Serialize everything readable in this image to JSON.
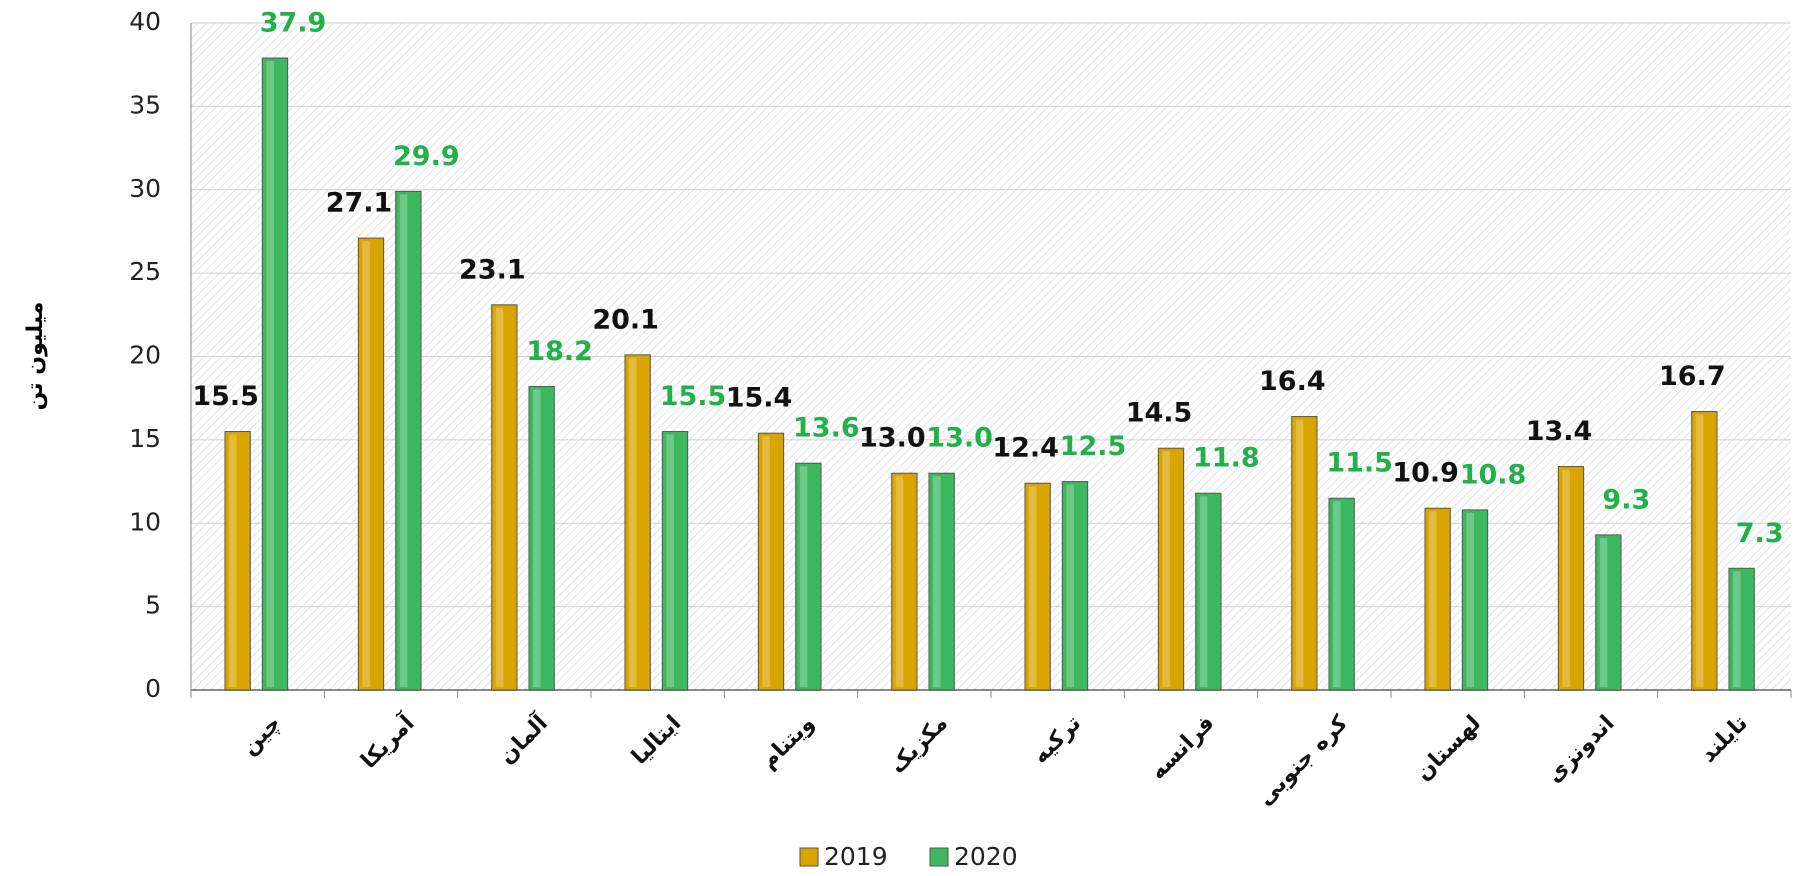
{
  "chart_data": {
    "type": "bar",
    "y_label": "میلیون تن",
    "categories": [
      "چین",
      "آمریکا",
      "آلمان",
      "ایتالیا",
      "ویتنام",
      "مکزیک",
      "ترکیه",
      "فرانسه",
      "کره جنوبی",
      "لهستان",
      "اندونزی",
      "تایلند"
    ],
    "series": [
      {
        "name": "2019",
        "color": "#d9a400",
        "label_color": "#111111",
        "values": [
          15.5,
          27.1,
          23.1,
          20.1,
          15.4,
          13.0,
          12.4,
          14.5,
          16.4,
          10.9,
          13.4,
          16.7
        ],
        "value_labels": [
          "15.5",
          "27.1",
          "23.1",
          "20.1",
          "15.4",
          "13.0",
          "12.4",
          "14.5",
          "16.4",
          "10.9",
          "13.4",
          "16.7"
        ]
      },
      {
        "name": "2020",
        "color": "#3db860",
        "label_color": "#22b04a",
        "values": [
          37.9,
          29.9,
          18.2,
          15.5,
          13.6,
          13.0,
          12.5,
          11.8,
          11.5,
          10.8,
          9.3,
          7.3
        ],
        "value_labels": [
          "37.9",
          "29.9",
          "18.2",
          "15.5",
          "13.6",
          "13.0",
          "12.5",
          "11.8",
          "11.5",
          "10.8",
          "9.3",
          "7.3"
        ]
      }
    ],
    "ylim": [
      0,
      40
    ],
    "yticks": [
      0,
      5,
      10,
      15,
      20,
      25,
      30,
      35,
      40
    ],
    "grid": true,
    "legend": "bottom"
  }
}
